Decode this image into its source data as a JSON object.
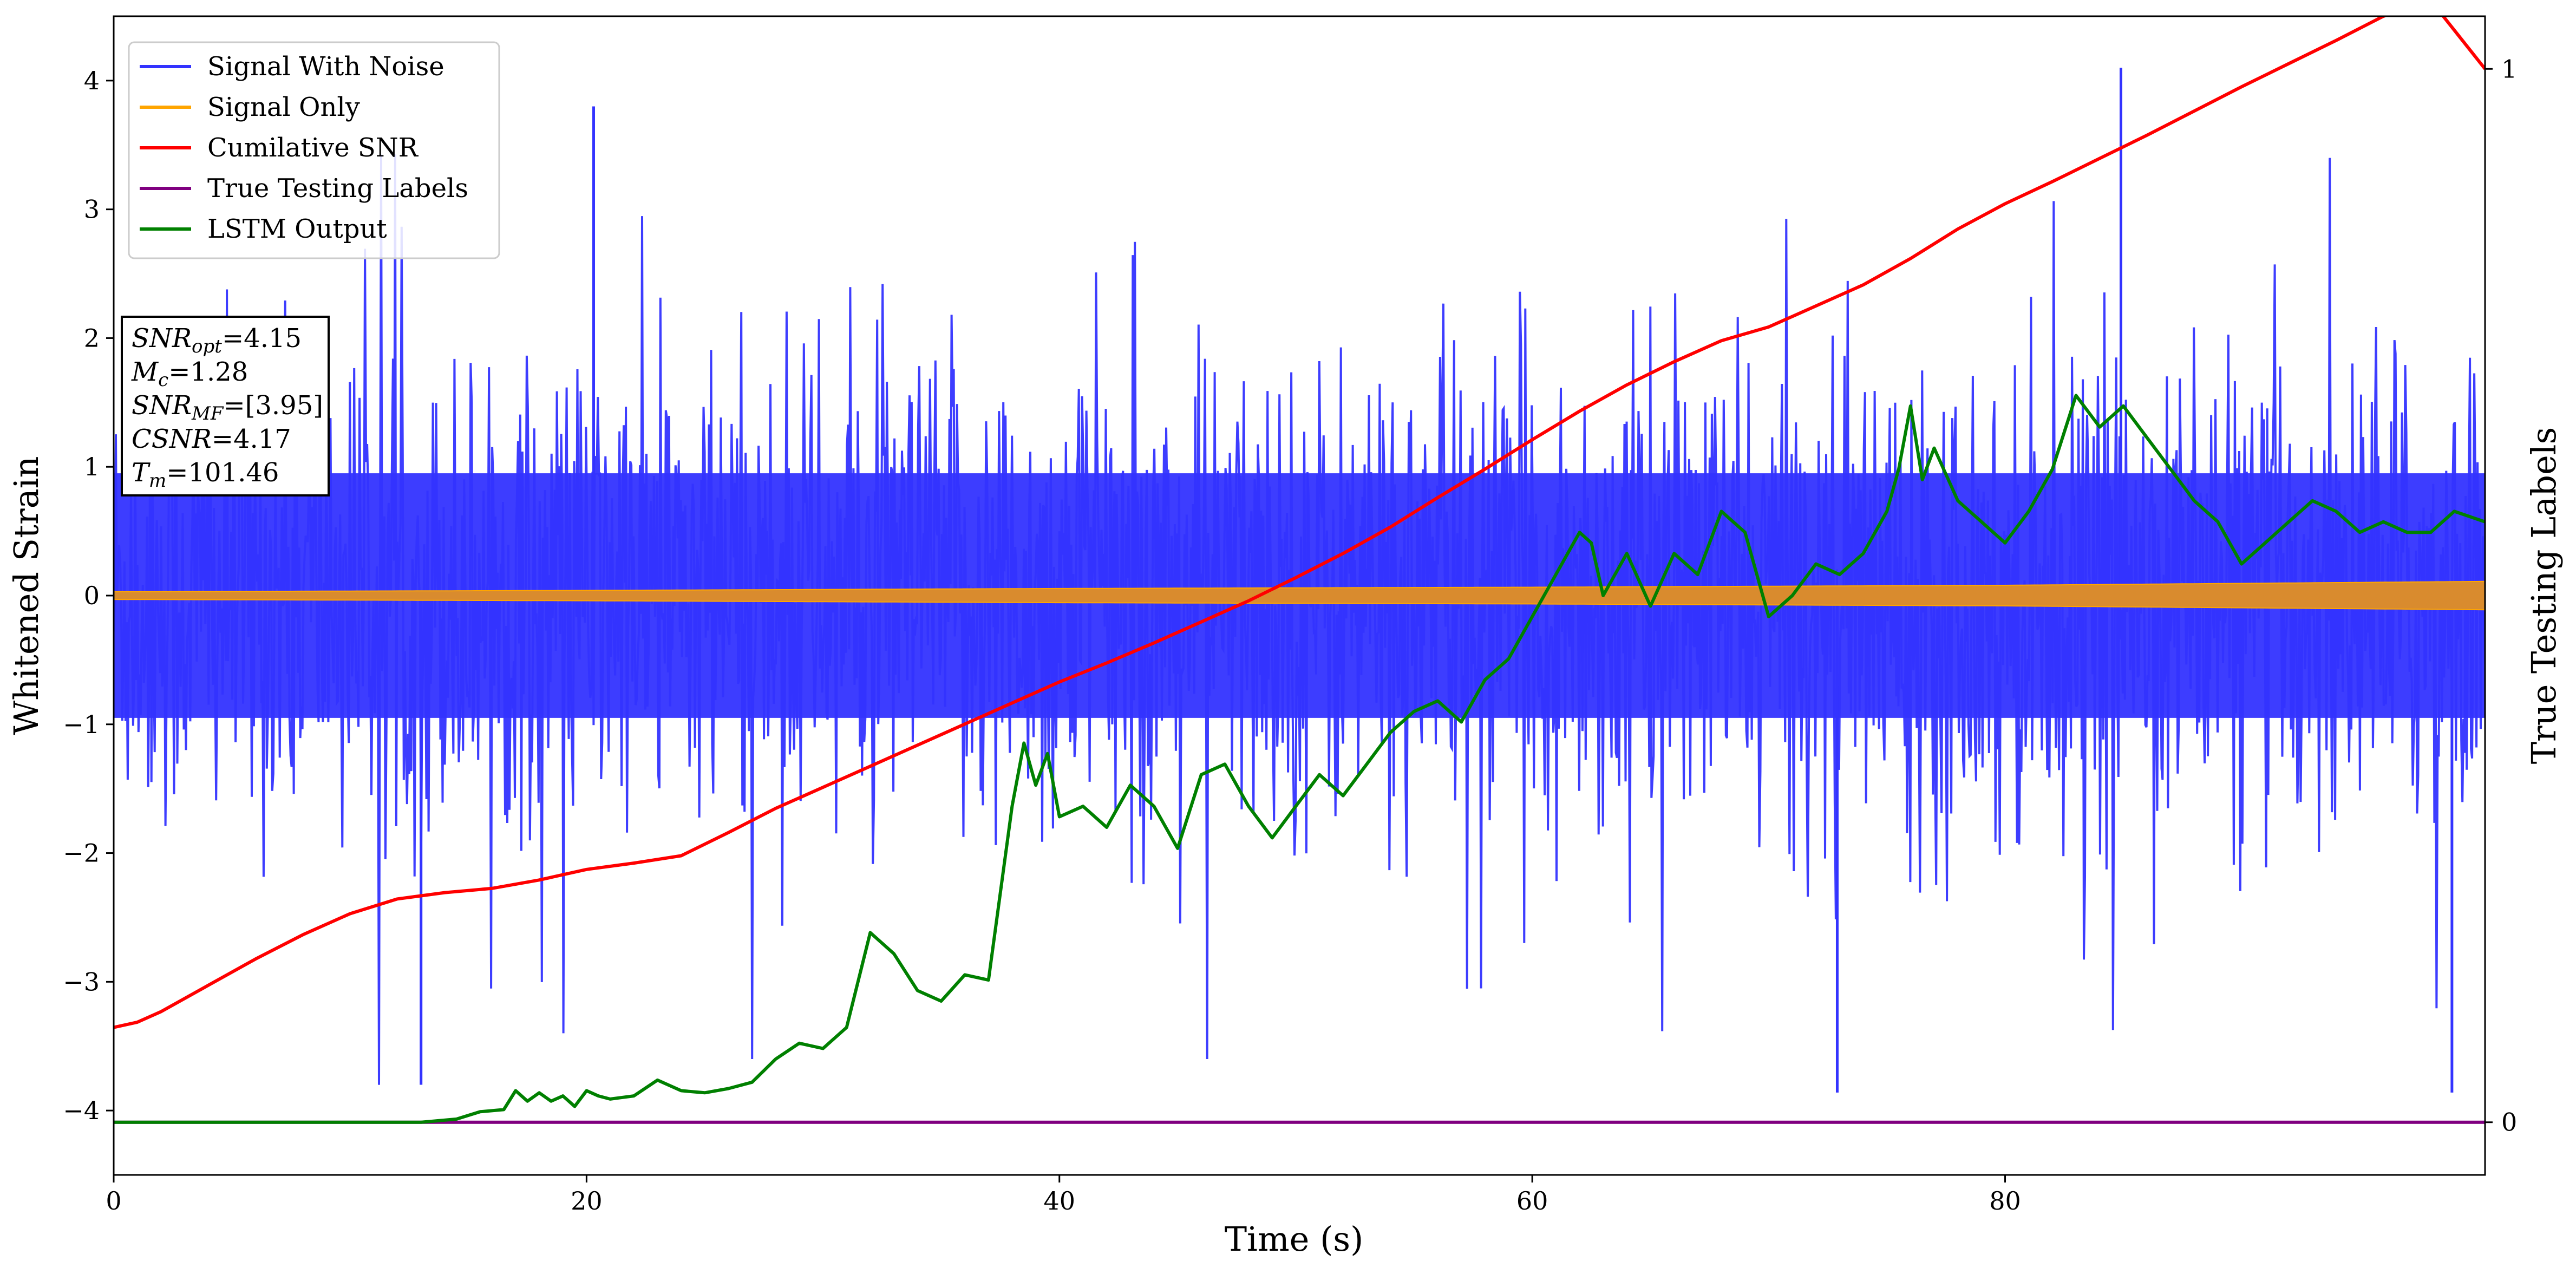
{
  "chart_data": {
    "type": "line",
    "xlabel": "Time (s)",
    "ylabel": "Whitened Strain",
    "y2label": "True Testing Labels",
    "xlim": [
      0,
      100.3
    ],
    "ylim": [
      -4.5,
      4.5
    ],
    "y2lim": [
      -0.05,
      1.05
    ],
    "x_ticks": [
      0,
      20,
      40,
      60,
      80
    ],
    "y_ticks": [
      -4,
      -3,
      -2,
      -1,
      0,
      1,
      2,
      3,
      4
    ],
    "y2_ticks": [
      0,
      1
    ],
    "legend_position": "upper-left",
    "grid": false,
    "series": [
      {
        "name": "Signal With Noise",
        "axis": "left",
        "color": "#3333ff",
        "description_kind": "dense_noise",
        "std": 0.9,
        "envelope_max": [
          3.2,
          3.8,
          3.5,
          3.6,
          3.8,
          3.4,
          3.5,
          3.2,
          3.4,
          3.6,
          4.1,
          3.5,
          3.3,
          3.4
        ],
        "envelope_min": [
          -3.2,
          -3.8,
          -3.4,
          -3.6,
          -3.3,
          -3.5,
          -3.6,
          -3.2,
          -3.4,
          -3.5,
          -3.9,
          -3.7,
          -3.6,
          -3.9
        ],
        "notable_spikes": [
          {
            "x": 13.0,
            "y": -3.8
          },
          {
            "x": 20.3,
            "y": 3.8
          },
          {
            "x": 72.9,
            "y": -3.86
          },
          {
            "x": 84.9,
            "y": 4.1
          },
          {
            "x": 98.9,
            "y": -3.86
          }
        ]
      },
      {
        "name": "Signal Only",
        "axis": "left",
        "color": "#ffa500",
        "description_kind": "chirp_band",
        "amplitude": {
          "x": [
            0,
            20,
            40,
            60,
            80,
            100.3
          ],
          "y": [
            0.03,
            0.04,
            0.055,
            0.065,
            0.08,
            0.11
          ]
        }
      },
      {
        "name": "Cumilative SNR",
        "axis": "right",
        "color": "#ff0000",
        "x": [
          0,
          1,
          2,
          4,
          6,
          8,
          10,
          12,
          14,
          16,
          18,
          20,
          22,
          24,
          26,
          28,
          30,
          32,
          34,
          36,
          38,
          40,
          42,
          44,
          46,
          48,
          50,
          52,
          54,
          56,
          58,
          60,
          62,
          64,
          66,
          68,
          70,
          71,
          74,
          76,
          78,
          80,
          82,
          84,
          86,
          88,
          90,
          92,
          94,
          96,
          98,
          100.3
        ],
        "y": [
          0.09,
          0.095,
          0.105,
          0.13,
          0.155,
          0.178,
          0.198,
          0.212,
          0.218,
          0.222,
          0.23,
          0.24,
          0.246,
          0.253,
          0.275,
          0.298,
          0.318,
          0.338,
          0.358,
          0.378,
          0.398,
          0.418,
          0.436,
          0.455,
          0.475,
          0.495,
          0.517,
          0.54,
          0.565,
          0.593,
          0.62,
          0.648,
          0.675,
          0.7,
          0.722,
          0.742,
          0.755,
          0.765,
          0.795,
          0.82,
          0.848,
          0.872,
          0.893,
          0.915,
          0.937,
          0.96,
          0.983,
          1.005,
          1.027,
          1.05,
          1.065,
          1.0
        ]
      },
      {
        "name": "True Testing Labels",
        "axis": "right",
        "color": "#800080",
        "x": [
          0,
          100.3
        ],
        "y": [
          0,
          0
        ]
      },
      {
        "name": "LSTM Output",
        "axis": "right",
        "color": "#008000",
        "x": [
          0,
          10,
          13,
          14.5,
          15.5,
          16.5,
          17,
          17.5,
          18,
          18.5,
          19,
          19.5,
          20,
          20.5,
          21,
          22,
          23,
          24,
          25,
          26,
          27,
          28,
          29,
          30,
          31,
          32,
          33,
          34,
          35,
          36,
          37,
          38,
          38.5,
          39,
          39.5,
          40,
          41,
          42,
          43,
          44,
          45,
          46,
          47,
          48,
          49,
          50,
          51,
          52,
          53,
          54,
          55,
          56,
          57,
          58,
          59,
          60,
          61,
          61.5,
          62,
          62.5,
          63,
          64,
          65,
          66,
          67,
          68,
          69,
          70,
          71,
          72,
          73,
          74,
          75,
          75.5,
          76,
          76.5,
          77,
          78,
          79,
          80,
          81,
          82,
          83,
          84,
          85,
          86,
          87,
          88,
          89,
          90,
          91,
          92,
          93,
          94,
          95,
          96,
          97,
          98,
          99,
          100.3
        ],
        "y": [
          0,
          0,
          0,
          0.003,
          0.01,
          0.012,
          0.03,
          0.02,
          0.028,
          0.02,
          0.025,
          0.015,
          0.03,
          0.025,
          0.022,
          0.025,
          0.04,
          0.03,
          0.028,
          0.032,
          0.038,
          0.06,
          0.075,
          0.07,
          0.09,
          0.18,
          0.16,
          0.125,
          0.115,
          0.14,
          0.135,
          0.3,
          0.36,
          0.32,
          0.35,
          0.29,
          0.3,
          0.28,
          0.32,
          0.3,
          0.26,
          0.33,
          0.34,
          0.3,
          0.27,
          0.3,
          0.33,
          0.31,
          0.34,
          0.37,
          0.39,
          0.4,
          0.38,
          0.42,
          0.44,
          0.48,
          0.52,
          0.54,
          0.56,
          0.55,
          0.5,
          0.54,
          0.49,
          0.54,
          0.52,
          0.58,
          0.56,
          0.48,
          0.5,
          0.53,
          0.52,
          0.54,
          0.58,
          0.62,
          0.68,
          0.61,
          0.64,
          0.59,
          0.57,
          0.55,
          0.58,
          0.62,
          0.69,
          0.66,
          0.68,
          0.65,
          0.62,
          0.59,
          0.57,
          0.53,
          0.55,
          0.57,
          0.59,
          0.58,
          0.56,
          0.57,
          0.56,
          0.56,
          0.58,
          0.57
        ]
      }
    ],
    "annotation_lines": [
      {
        "main": "SNR",
        "sub": "opt",
        "value": "=4.15"
      },
      {
        "main": "M",
        "sub": "c",
        "value": "=1.28"
      },
      {
        "main": "SNR",
        "sub": "MF",
        "value": "=[3.95]"
      },
      {
        "main": "CSNR",
        "sub": "",
        "value": "=4.17"
      },
      {
        "main": "T",
        "sub": "m",
        "value": "=101.46"
      }
    ]
  }
}
